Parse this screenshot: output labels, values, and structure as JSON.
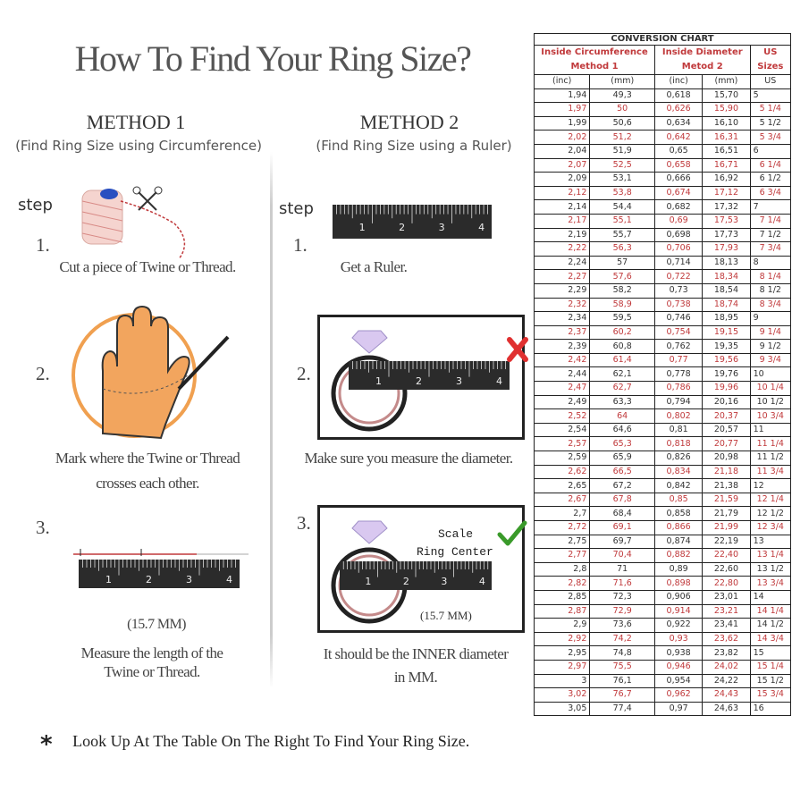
{
  "title": "How To Find Your Ring Size?",
  "method1": {
    "heading": "METHOD 1",
    "subtitle": "(Find Ring Size using Circumference)",
    "step_label": "step",
    "steps": [
      {
        "num": "1.",
        "text": "Cut a piece of  Twine or Thread."
      },
      {
        "num": "2.",
        "text": [
          "Mark where the Twine or Thread",
          "crosses each other."
        ]
      },
      {
        "num": "3.",
        "measure": "(15.7 MM)",
        "text": [
          "Measure the length of the",
          "Twine or Thread."
        ]
      }
    ]
  },
  "method2": {
    "heading": "METHOD 2",
    "subtitle": "(Find Ring Size using a Ruler)",
    "step_label": "step",
    "steps": [
      {
        "num": "1.",
        "text": "Get a Ruler."
      },
      {
        "num": "2.",
        "text": "Make sure you measure the diameter."
      },
      {
        "num": "3.",
        "scale_label": "Scale",
        "center_label": "Ring Center",
        "measure": "(15.7 MM)",
        "text": [
          "It should be the INNER diameter",
          "in MM."
        ]
      }
    ]
  },
  "ruler_numbers": [
    "1",
    "2",
    "3",
    "4"
  ],
  "footnote": {
    "symbol": "*",
    "text": "Look Up At The Table On The Right To Find Your Ring Size."
  },
  "colors": {
    "accent_red": "#c0393b",
    "hand": "#f2a55e",
    "ring": "#c48a8a",
    "check": "#3a9a2a",
    "cross": "#e03030"
  },
  "conversion_chart": {
    "title": "CONVERSION CHART",
    "group_headers": [
      "Inside Circumference Method 1",
      "Inside Diameter Metod 2",
      "US Sizes"
    ],
    "columns": [
      "(inc)",
      "(mm)",
      "(inc)",
      "(mm)",
      "US"
    ],
    "rows": [
      [
        "1,94",
        "49,3",
        "0,618",
        "15,70",
        "5"
      ],
      [
        "1,97",
        "50",
        "0,626",
        "15,90",
        "5 1/4"
      ],
      [
        "1,99",
        "50,6",
        "0,634",
        "16,10",
        "5 1/2"
      ],
      [
        "2,02",
        "51,2",
        "0,642",
        "16,31",
        "5 3/4"
      ],
      [
        "2,04",
        "51,9",
        "0,65",
        "16,51",
        "6"
      ],
      [
        "2,07",
        "52,5",
        "0,658",
        "16,71",
        "6 1/4"
      ],
      [
        "2,09",
        "53,1",
        "0,666",
        "16,92",
        "6 1/2"
      ],
      [
        "2,12",
        "53,8",
        "0,674",
        "17,12",
        "6 3/4"
      ],
      [
        "2,14",
        "54,4",
        "0,682",
        "17,32",
        "7"
      ],
      [
        "2,17",
        "55,1",
        "0,69",
        "17,53",
        "7 1/4"
      ],
      [
        "2,19",
        "55,7",
        "0,698",
        "17,73",
        "7 1/2"
      ],
      [
        "2,22",
        "56,3",
        "0,706",
        "17,93",
        "7 3/4"
      ],
      [
        "2,24",
        "57",
        "0,714",
        "18,13",
        "8"
      ],
      [
        "2,27",
        "57,6",
        "0,722",
        "18,34",
        "8 1/4"
      ],
      [
        "2,29",
        "58,2",
        "0,73",
        "18,54",
        "8 1/2"
      ],
      [
        "2,32",
        "58,9",
        "0,738",
        "18,74",
        "8 3/4"
      ],
      [
        "2,34",
        "59,5",
        "0,746",
        "18,95",
        "9"
      ],
      [
        "2,37",
        "60,2",
        "0,754",
        "19,15",
        "9 1/4"
      ],
      [
        "2,39",
        "60,8",
        "0,762",
        "19,35",
        "9 1/2"
      ],
      [
        "2,42",
        "61,4",
        "0,77",
        "19,56",
        "9 3/4"
      ],
      [
        "2,44",
        "62,1",
        "0,778",
        "19,76",
        "10"
      ],
      [
        "2,47",
        "62,7",
        "0,786",
        "19,96",
        "10 1/4"
      ],
      [
        "2,49",
        "63,3",
        "0,794",
        "20,16",
        "10 1/2"
      ],
      [
        "2,52",
        "64",
        "0,802",
        "20,37",
        "10 3/4"
      ],
      [
        "2,54",
        "64,6",
        "0,81",
        "20,57",
        "11"
      ],
      [
        "2,57",
        "65,3",
        "0,818",
        "20,77",
        "11 1/4"
      ],
      [
        "2,59",
        "65,9",
        "0,826",
        "20,98",
        "11 1/2"
      ],
      [
        "2,62",
        "66,5",
        "0,834",
        "21,18",
        "11 3/4"
      ],
      [
        "2,65",
        "67,2",
        "0,842",
        "21,38",
        "12"
      ],
      [
        "2,67",
        "67,8",
        "0,85",
        "21,59",
        "12 1/4"
      ],
      [
        "2,7",
        "68,4",
        "0,858",
        "21,79",
        "12 1/2"
      ],
      [
        "2,72",
        "69,1",
        "0,866",
        "21,99",
        "12 3/4"
      ],
      [
        "2,75",
        "69,7",
        "0,874",
        "22,19",
        "13"
      ],
      [
        "2,77",
        "70,4",
        "0,882",
        "22,40",
        "13 1/4"
      ],
      [
        "2,8",
        "71",
        "0,89",
        "22,60",
        "13 1/2"
      ],
      [
        "2,82",
        "71,6",
        "0,898",
        "22,80",
        "13 3/4"
      ],
      [
        "2,85",
        "72,3",
        "0,906",
        "23,01",
        "14"
      ],
      [
        "2,87",
        "72,9",
        "0,914",
        "23,21",
        "14 1/4"
      ],
      [
        "2,9",
        "73,6",
        "0,922",
        "23,41",
        "14 1/2"
      ],
      [
        "2,92",
        "74,2",
        "0,93",
        "23,62",
        "14 3/4"
      ],
      [
        "2,95",
        "74,8",
        "0,938",
        "23,82",
        "15"
      ],
      [
        "2,97",
        "75,5",
        "0,946",
        "24,02",
        "15 1/4"
      ],
      [
        "3",
        "76,1",
        "0,954",
        "24,22",
        "15 1/2"
      ],
      [
        "3,02",
        "76,7",
        "0,962",
        "24,43",
        "15 3/4"
      ],
      [
        "3,05",
        "77,4",
        "0,97",
        "24,63",
        "16"
      ]
    ]
  }
}
